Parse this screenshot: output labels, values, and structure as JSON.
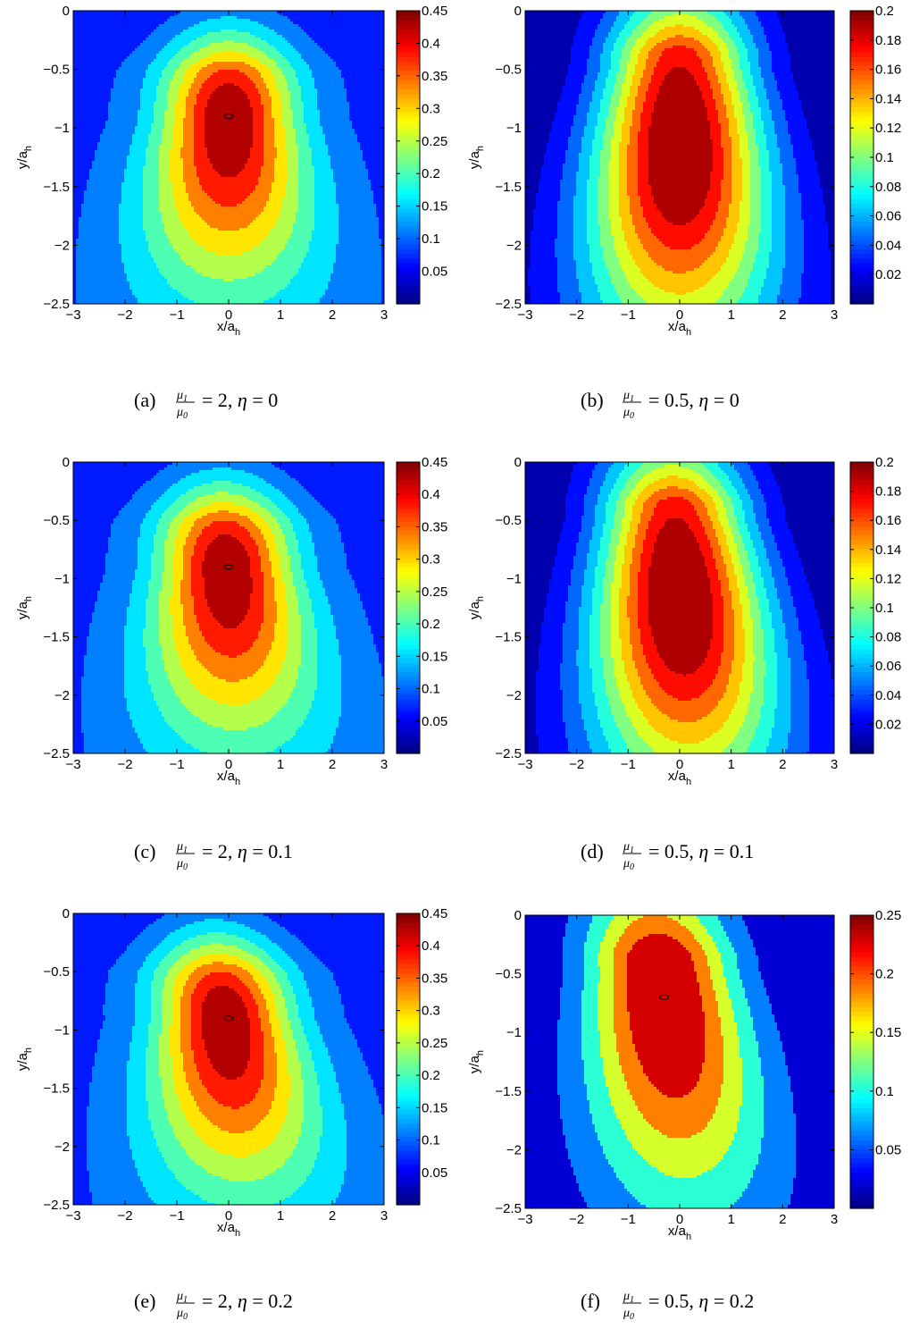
{
  "chart_data": [
    {
      "type": "contour",
      "panel": "(a)",
      "caption": {
        "ratio": "2",
        "eta": "0"
      },
      "xlabel": "x/a",
      "xlabel_sub": "h",
      "ylabel": "y/a",
      "ylabel_sub": "h",
      "xlim": [
        -3,
        3
      ],
      "ylim": [
        -2.5,
        0
      ],
      "xticks": [
        "-3",
        "-2",
        "-1",
        "0",
        "1",
        "2",
        "3"
      ],
      "yticks": [
        "0",
        "-0.5",
        "-1",
        "-1.5",
        "-2",
        "-2.5"
      ],
      "colorbar_ticks": [
        "0.45",
        "0.4",
        "0.35",
        "0.3",
        "0.25",
        "0.2",
        "0.15",
        "0.1",
        "0.05"
      ],
      "clim": [
        0,
        0.45
      ],
      "peak": [
        0,
        -0.9
      ],
      "peak_value": 0.45,
      "skew": 0
    },
    {
      "type": "contour",
      "panel": "(b)",
      "caption": {
        "ratio": "0.5",
        "eta": "0"
      },
      "xlabel": "x/a",
      "xlabel_sub": "h",
      "ylabel": "y/a",
      "ylabel_sub": "h",
      "xlim": [
        -3,
        3
      ],
      "ylim": [
        -2.5,
        0
      ],
      "xticks": [
        "-3",
        "-2",
        "-1",
        "0",
        "1",
        "2",
        "3"
      ],
      "yticks": [
        "0",
        "-0.5",
        "-1",
        "-1.5",
        "-2",
        "-2.5"
      ],
      "colorbar_ticks": [
        "0.2",
        "0.18",
        "0.16",
        "0.14",
        "0.12",
        "0.1",
        "0.08",
        "0.06",
        "0.04",
        "0.02"
      ],
      "clim": [
        0,
        0.2
      ],
      "skew": 0
    },
    {
      "type": "contour",
      "panel": "(c)",
      "caption": {
        "ratio": "2",
        "eta": "0.1"
      },
      "xlabel": "x/a",
      "xlabel_sub": "h",
      "ylabel": "y/a",
      "ylabel_sub": "h",
      "xlim": [
        -3,
        3
      ],
      "ylim": [
        -2.5,
        0
      ],
      "xticks": [
        "-3",
        "-2",
        "-1",
        "0",
        "1",
        "2",
        "3"
      ],
      "yticks": [
        "0",
        "-0.5",
        "-1",
        "-1.5",
        "-2",
        "-2.5"
      ],
      "colorbar_ticks": [
        "0.45",
        "0.4",
        "0.35",
        "0.3",
        "0.25",
        "0.2",
        "0.15",
        "0.1",
        "0.05"
      ],
      "clim": [
        0,
        0.45
      ],
      "peak": [
        0,
        -0.9
      ],
      "peak_value": 0.45,
      "skew": 0.1
    },
    {
      "type": "contour",
      "panel": "(d)",
      "caption": {
        "ratio": "0.5",
        "eta": "0.1"
      },
      "xlabel": "x/a",
      "xlabel_sub": "h",
      "ylabel": "y/a",
      "ylabel_sub": "h",
      "xlim": [
        -3,
        3
      ],
      "ylim": [
        -2.5,
        0
      ],
      "xticks": [
        "-3",
        "-2",
        "-1",
        "0",
        "1",
        "2",
        "3"
      ],
      "yticks": [
        "0",
        "-0.5",
        "-1",
        "-1.5",
        "-2",
        "-2.5"
      ],
      "colorbar_ticks": [
        "0.2",
        "0.18",
        "0.16",
        "0.14",
        "0.12",
        "0.1",
        "0.08",
        "0.06",
        "0.04",
        "0.02"
      ],
      "clim": [
        0,
        0.2
      ],
      "skew": 0.1
    },
    {
      "type": "contour",
      "panel": "(e)",
      "caption": {
        "ratio": "2",
        "eta": "0.2"
      },
      "xlabel": "x/a",
      "xlabel_sub": "h",
      "ylabel": "y/a",
      "ylabel_sub": "h",
      "xlim": [
        -3,
        3
      ],
      "ylim": [
        -2.5,
        0
      ],
      "xticks": [
        "-3",
        "-2",
        "-1",
        "0",
        "1",
        "2",
        "3"
      ],
      "yticks": [
        "0",
        "-0.5",
        "-1",
        "-1.5",
        "-2",
        "-2.5"
      ],
      "colorbar_ticks": [
        "0.45",
        "0.4",
        "0.35",
        "0.3",
        "0.25",
        "0.2",
        "0.15",
        "0.1",
        "0.05"
      ],
      "clim": [
        0,
        0.45
      ],
      "peak": [
        0,
        -0.9
      ],
      "peak_value": 0.45,
      "skew": 0.2
    },
    {
      "type": "contour",
      "panel": "(f)",
      "caption": {
        "ratio": "0.5",
        "eta": "0.2"
      },
      "xlabel": "x/a",
      "xlabel_sub": "h",
      "ylabel": "y/a",
      "ylabel_sub": "h",
      "xlim": [
        -3,
        3
      ],
      "ylim": [
        -2.5,
        0
      ],
      "xticks": [
        "-3",
        "-2",
        "-1",
        "0",
        "1",
        "2",
        "3"
      ],
      "yticks": [
        "0",
        "-0.5",
        "-1",
        "-1.5",
        "-2",
        "-2.5"
      ],
      "colorbar_ticks": [
        "0.25",
        "0.2",
        "0.15",
        "0.1",
        "0.05"
      ],
      "clim": [
        0,
        0.25
      ],
      "peak": [
        -0.3,
        -0.7
      ],
      "peak_value": 0.25,
      "skew": 0.2
    }
  ],
  "frac": {
    "num": "μ",
    "num_sub": "1",
    "den": "μ",
    "den_sub": "0"
  },
  "caption_eq": "=",
  "caption_eta": "η"
}
